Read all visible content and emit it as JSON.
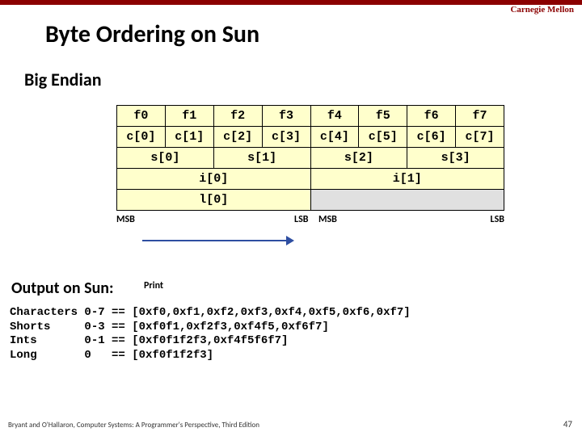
{
  "header": {
    "institution": "Carnegie Mellon",
    "title": "Byte Ordering on Sun",
    "subtitle": "Big Endian"
  },
  "table": {
    "f": [
      "f0",
      "f1",
      "f2",
      "f3",
      "f4",
      "f5",
      "f6",
      "f7"
    ],
    "c": [
      "c[0]",
      "c[1]",
      "c[2]",
      "c[3]",
      "c[4]",
      "c[5]",
      "c[6]",
      "c[7]"
    ],
    "s": [
      "s[0]",
      "s[1]",
      "s[2]",
      "s[3]"
    ],
    "i": [
      "i[0]",
      "i[1]"
    ],
    "l": [
      "l[0]"
    ]
  },
  "labels": {
    "msb": "MSB",
    "lsb": "LSB",
    "print": "Print"
  },
  "output": {
    "heading": "Output on Sun:",
    "lines": [
      "Characters 0-7 == [0xf0,0xf1,0xf2,0xf3,0xf4,0xf5,0xf6,0xf7]",
      "Shorts     0-3 == [0xf0f1,0xf2f3,0xf4f5,0xf6f7]",
      "Ints       0-1 == [0xf0f1f2f3,0xf4f5f6f7]",
      "Long       0   == [0xf0f1f2f3]"
    ]
  },
  "footer": {
    "citation": "Bryant and O'Hallaron, Computer Systems: A Programmer's Perspective, Third Edition",
    "page": "47"
  },
  "colors": {
    "accent": "#8b0000",
    "cell_bg": "#ffffcc",
    "fill_bg": "#e0e0e0",
    "arrow": "#2e4ea1"
  }
}
